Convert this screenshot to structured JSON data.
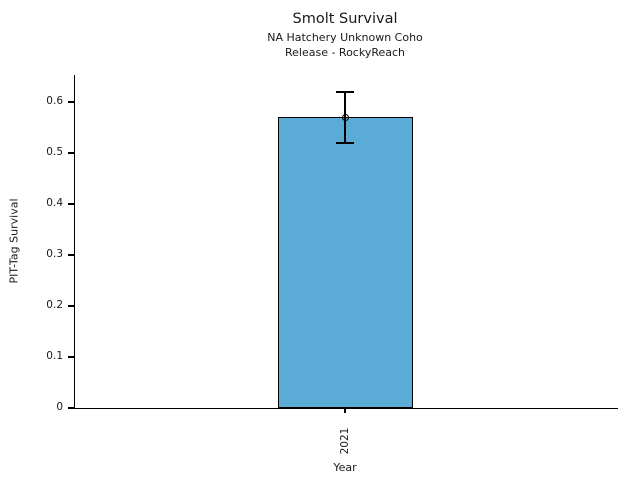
{
  "chart_data": {
    "type": "bar",
    "title": "Smolt Survival",
    "subtitle_line1": "NA Hatchery Unknown Coho",
    "subtitle_line2": "Release - RockyReach",
    "xlabel": "Year",
    "ylabel": "PIT-Tag Survival",
    "categories": [
      "2021"
    ],
    "values": [
      0.57
    ],
    "error_low": [
      0.52
    ],
    "error_high": [
      0.62
    ],
    "yticks": [
      0,
      0.1,
      0.2,
      0.3,
      0.4,
      0.5,
      0.6
    ],
    "ylim": [
      0,
      0.653
    ],
    "grid": "off",
    "legend": "none",
    "bar_fill_color": "#5AABD5",
    "bar_edge_color": "#000000",
    "errorbar_color": "#000000",
    "marker": "open-circle"
  }
}
